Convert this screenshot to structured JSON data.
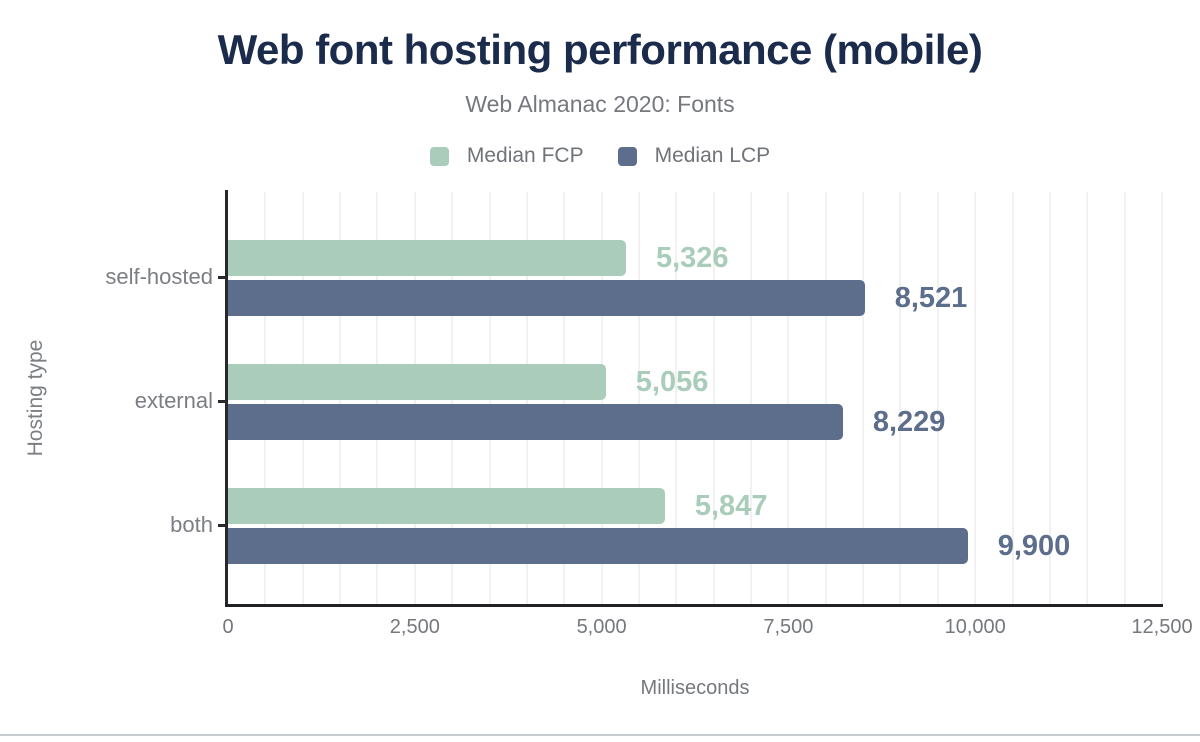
{
  "figure": {
    "title": "Web font hosting performance (mobile)",
    "subtitle": "Web Almanac 2020: Fonts"
  },
  "legend": {
    "items": [
      {
        "label": "Median FCP",
        "color": "#a9cdba"
      },
      {
        "label": "Median LCP",
        "color": "#5c6e8b"
      }
    ]
  },
  "chart_data": {
    "type": "bar",
    "orientation": "horizontal",
    "title": "Web font hosting performance (mobile)",
    "subtitle": "Web Almanac 2020: Fonts",
    "xlabel": "Milliseconds",
    "ylabel": "Hosting type",
    "categories": [
      "self-hosted",
      "external",
      "both"
    ],
    "series": [
      {
        "name": "Median FCP",
        "color": "#a9cdba",
        "values": [
          5326,
          5056,
          5847
        ],
        "value_labels": [
          "5,326",
          "5,056",
          "5,847"
        ]
      },
      {
        "name": "Median LCP",
        "color": "#5c6e8b",
        "values": [
          8521,
          8229,
          9900
        ],
        "value_labels": [
          "8,521",
          "8,229",
          "9,900"
        ]
      }
    ],
    "xlim": [
      0,
      12500
    ],
    "xticks": {
      "values": [
        0,
        2500,
        5000,
        7500,
        10000,
        12500
      ],
      "labels": [
        "0",
        "2,500",
        "5,000",
        "7,500",
        "10,000",
        "12,500"
      ]
    },
    "grid": {
      "show": true,
      "minor_interval_ms": 500
    },
    "legend_position": "top"
  },
  "colors": {
    "title_text": "#1b2b4b",
    "muted_text": "#75787c",
    "axis_line": "#26282b",
    "gridline": "#f1f1f1",
    "divider": "#c7ccd1",
    "background": "#ffffff"
  }
}
